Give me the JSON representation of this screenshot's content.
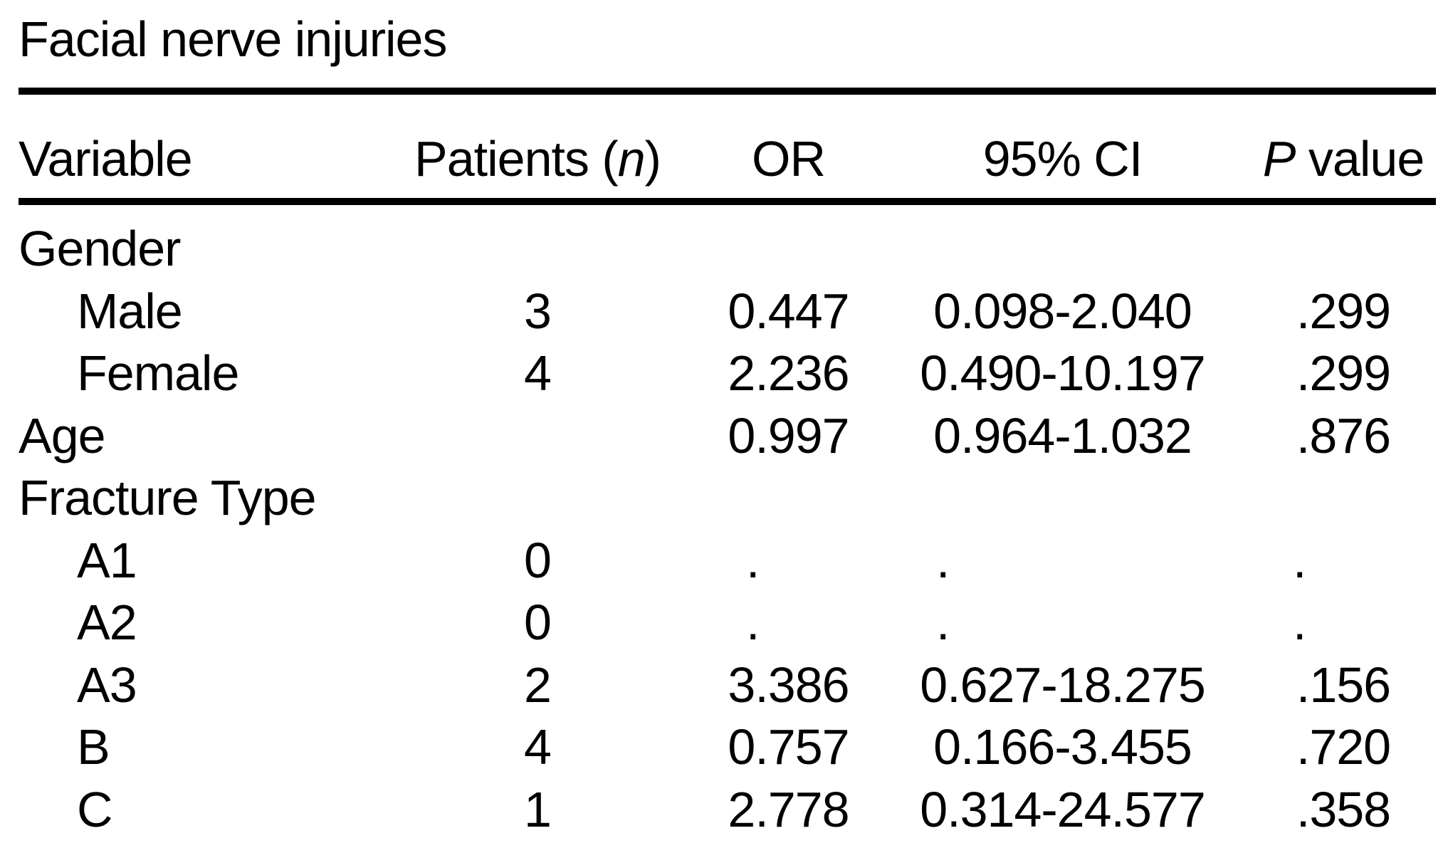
{
  "title": "Facial nerve injuries",
  "header": {
    "variable": "Variable",
    "patients_prefix": "Patients (",
    "patients_n": "n",
    "patients_suffix": ")",
    "or": "OR",
    "ci": "95% CI",
    "p_italic": "P",
    "p_rest": " value"
  },
  "rows": [
    {
      "label": "Gender",
      "level": "group",
      "patients": "",
      "or": "",
      "ci": "",
      "p": ""
    },
    {
      "label": "Male",
      "level": "sub",
      "patients": "3",
      "or": "0.447",
      "ci": "0.098-2.040",
      "p": ".299"
    },
    {
      "label": "Female",
      "level": "sub",
      "patients": "4",
      "or": "2.236",
      "ci": "0.490-10.197",
      "p": ".299"
    },
    {
      "label": "Age",
      "level": "group",
      "patients": "",
      "or": "0.997",
      "ci": "0.964-1.032",
      "p": ".876"
    },
    {
      "label": "Fracture Type",
      "level": "group",
      "patients": "",
      "or": "",
      "ci": "",
      "p": ""
    },
    {
      "label": "A1",
      "level": "sub",
      "patients": "0",
      "or": ".",
      "ci": ".",
      "p": "."
    },
    {
      "label": "A2",
      "level": "sub",
      "patients": "0",
      "or": ".",
      "ci": ".",
      "p": "."
    },
    {
      "label": "A3",
      "level": "sub",
      "patients": "2",
      "or": "3.386",
      "ci": "0.627-18.275",
      "p": ".156"
    },
    {
      "label": "B",
      "level": "sub",
      "patients": "4",
      "or": "0.757",
      "ci": "0.166-3.455",
      "p": ".720"
    },
    {
      "label": "C",
      "level": "sub",
      "patients": "1",
      "or": "2.778",
      "ci": "0.314-24.577",
      "p": ".358"
    }
  ]
}
